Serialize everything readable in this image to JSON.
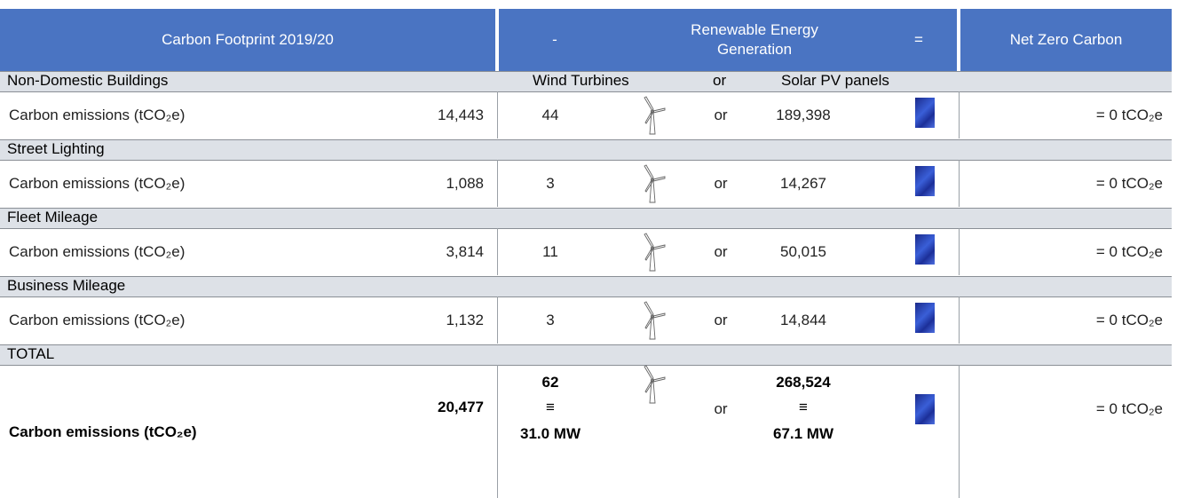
{
  "header": {
    "title": "Carbon Footprint 2019/20",
    "minus": "-",
    "generation": "Renewable Energy Generation",
    "equals": "=",
    "result": "Net Zero Carbon"
  },
  "subheader": {
    "wind": "Wind Turbines",
    "or": "or",
    "solar": "Solar PV panels"
  },
  "sections": [
    {
      "name": "Non-Domestic Buildings",
      "label": "Carbon emissions (tCO₂e)",
      "emissions": "14,443",
      "wind": "44",
      "or": "or",
      "solar": "189,398",
      "net": "= 0 tCO₂e"
    },
    {
      "name": "Street Lighting",
      "label": "Carbon emissions (tCO₂e)",
      "emissions": "1,088",
      "wind": "3",
      "or": "or",
      "solar": "14,267",
      "net": "= 0 tCO₂e"
    },
    {
      "name": "Fleet Mileage",
      "label": "Carbon emissions (tCO₂e)",
      "emissions": "3,814",
      "wind": "11",
      "or": "or",
      "solar": "50,015",
      "net": "= 0 tCO₂e"
    },
    {
      "name": "Business Mileage",
      "label": "Carbon emissions (tCO₂e)",
      "emissions": "1,132",
      "wind": "3",
      "or": "or",
      "solar": "14,844",
      "net": "= 0 tCO₂e"
    }
  ],
  "total": {
    "name": "TOTAL",
    "label": "Carbon emissions (tCO₂e)",
    "emissions": "20,477",
    "wind": "62",
    "wind_equiv": "≡",
    "wind_mw": "31.0 MW",
    "or": "or",
    "solar": "268,524",
    "solar_equiv": "≡",
    "solar_mw": "67.1 MW",
    "net": "= 0 tCO₂e"
  }
}
